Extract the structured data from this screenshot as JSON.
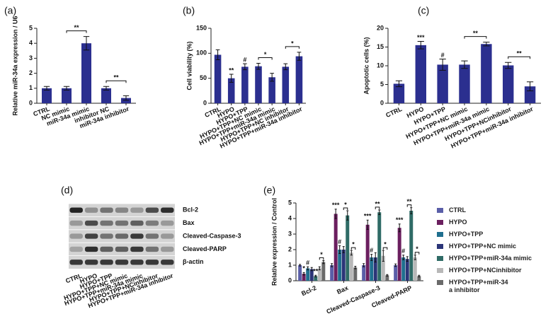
{
  "chart_data": [
    {
      "type": "bar",
      "title": "(a)",
      "ylabel": "Relative miR-34a expression / U6",
      "color": "#2b2f8f",
      "categories": [
        "CTRL",
        "NC mimic",
        "miR-34a mimic",
        "inhibitor NC",
        "miR-34a inhibitor"
      ],
      "values": [
        1.0,
        1.0,
        4.0,
        1.0,
        0.35
      ],
      "errors": [
        0.12,
        0.12,
        0.45,
        0.12,
        0.15
      ],
      "ylim": [
        0,
        5
      ],
      "yticks": [
        0,
        1,
        2,
        3,
        4,
        5
      ],
      "annotations": [
        "**",
        "**"
      ]
    },
    {
      "type": "bar",
      "title": "(b)",
      "ylabel": "Cell viability (%)",
      "color": "#2b2f8f",
      "categories": [
        "CTRL",
        "HYPO",
        "HYPO+TPP",
        "HYPO+TPP+NC mimic",
        "HYPO+TPP+miR-34a mimic",
        "HYPO+TPP+NC inhibitor",
        "HYPO+TPP+miR-34a inhibitor"
      ],
      "values": [
        97,
        50,
        73,
        74,
        52,
        73,
        94
      ],
      "errors": [
        10,
        8,
        6,
        6,
        8,
        6,
        8
      ],
      "ylim": [
        0,
        150
      ],
      "yticks": [
        0,
        50,
        100,
        150
      ],
      "annotations": [
        "**",
        "#",
        "*",
        "*"
      ]
    },
    {
      "type": "bar",
      "title": "(c)",
      "ylabel": "Apoptotic cells (%)",
      "color": "#2b2f8f",
      "categories": [
        "CTRL",
        "HYPO",
        "HYPO+TPP",
        "HYPO+TPP+NC mimic",
        "HYPO+TPP+miR-34a mimic",
        "HYPO+TPP+NCinhibitor",
        "HYPO+TPP+miR-34a inhibitor"
      ],
      "values": [
        5.2,
        15.5,
        10.3,
        10.3,
        15.8,
        10.1,
        4.5
      ],
      "errors": [
        0.8,
        1.0,
        1.5,
        1.0,
        0.5,
        0.8,
        1.2
      ],
      "ylim": [
        0,
        20
      ],
      "yticks": [
        0,
        5,
        10,
        15,
        20
      ],
      "annotations": [
        "***",
        "#",
        "**",
        "**"
      ]
    },
    {
      "type": "bar",
      "title": "(e)",
      "ylabel": "Relative expression / Control",
      "categories": [
        "Bcl-2",
        "Bax",
        "Cleaved-Caspase-3",
        "Cleaved-PARP"
      ],
      "series": [
        {
          "name": "CTRL",
          "color": "#5a5ea8",
          "values": [
            1.0,
            1.0,
            1.0,
            1.0
          ],
          "errors": [
            0.05,
            0.1,
            0.1,
            0.08
          ]
        },
        {
          "name": "HYPO",
          "color": "#6b1f5f",
          "values": [
            0.45,
            4.3,
            3.6,
            3.4
          ],
          "errors": [
            0.08,
            0.3,
            0.3,
            0.25
          ]
        },
        {
          "name": "HYPO+TPP",
          "color": "#1f6f8f",
          "values": [
            0.8,
            2.0,
            1.5,
            1.5
          ],
          "errors": [
            0.1,
            0.25,
            0.2,
            0.15
          ]
        },
        {
          "name": "HYPO+TPP+NC mimic",
          "color": "#2b3578",
          "values": [
            0.75,
            2.0,
            1.5,
            1.4
          ],
          "errors": [
            0.1,
            0.2,
            0.3,
            0.15
          ]
        },
        {
          "name": "HYPO+TPP+miR-34a mimic",
          "color": "#2f6b66",
          "values": [
            0.3,
            4.2,
            4.4,
            4.5
          ],
          "errors": [
            0.05,
            0.3,
            0.15,
            0.2
          ]
        },
        {
          "name": "HYPO+TPP+NCinhibitor",
          "color": "#b8b8b8",
          "values": [
            0.8,
            1.8,
            1.6,
            1.5
          ],
          "errors": [
            0.1,
            0.15,
            0.35,
            0.15
          ]
        },
        {
          "name": "HYPO+TPP+miR-34\na inhibitor",
          "color": "#6a6a6a",
          "values": [
            1.2,
            0.85,
            0.35,
            0.3
          ],
          "errors": [
            0.1,
            0.08,
            0.05,
            0.05
          ]
        }
      ],
      "ylim": [
        0,
        5
      ],
      "yticks": [
        0,
        1,
        2,
        3,
        4,
        5
      ],
      "annotations": [
        "*",
        "#",
        "**",
        "*",
        "***",
        "#",
        "*",
        "*",
        "***",
        "#",
        "**",
        "*",
        "***",
        "#",
        "**",
        "*"
      ]
    }
  ],
  "blot": {
    "title": "(d)",
    "proteins": [
      "Bcl-2",
      "Bax",
      "Cleaved-Caspase-3",
      "Cleaved-PARP",
      "β-actin"
    ],
    "lanes": [
      "CTRL",
      "HYPO",
      "HYPO+TPP",
      "HYPO+TPP+NC mimic",
      "HYPO+TPP+miR-34a mimic",
      "HYPO+TPP+NCinhibitor",
      "HYPO+TPP+miR-34a inhibitor"
    ]
  }
}
